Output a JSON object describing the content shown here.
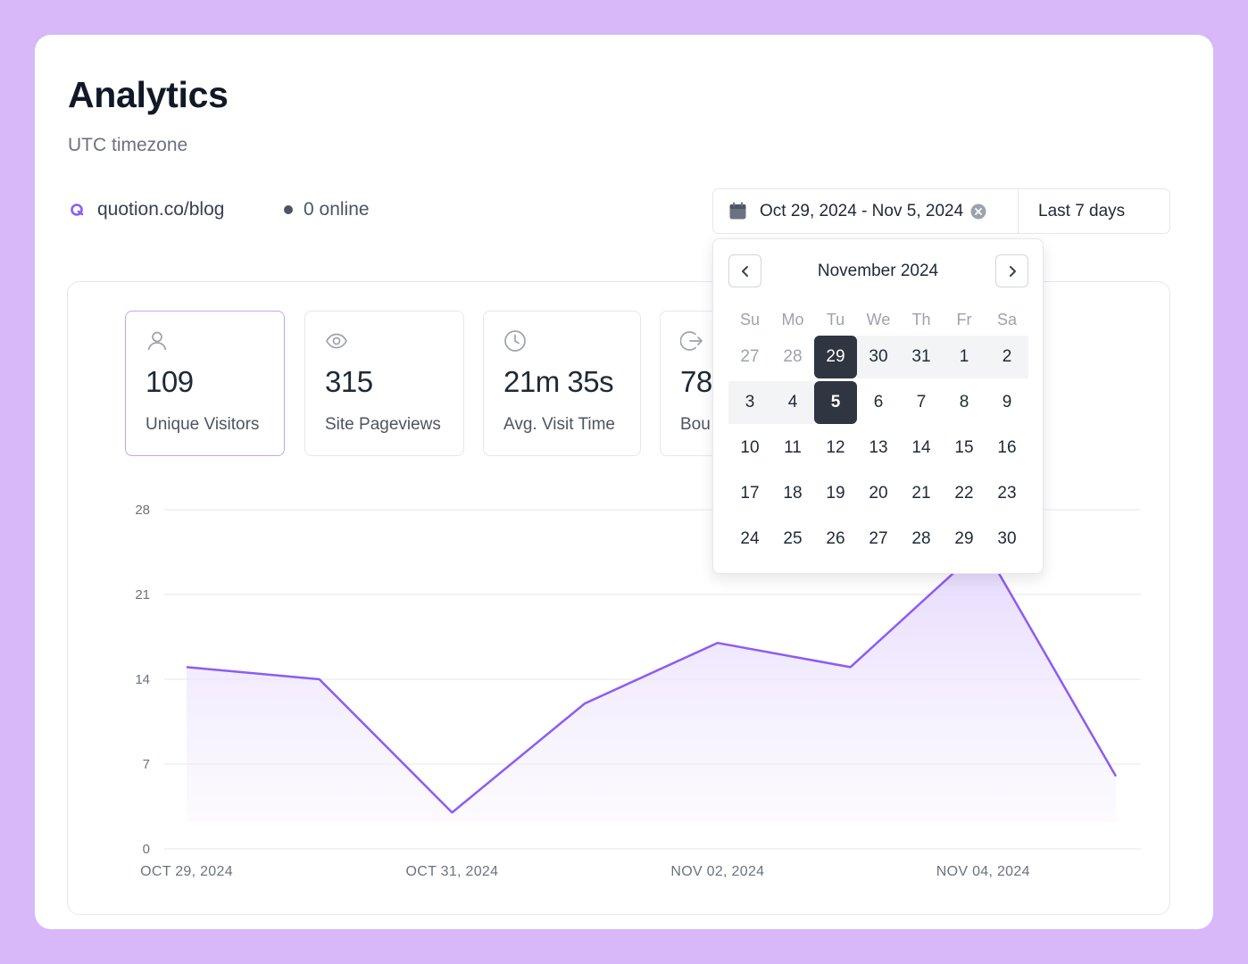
{
  "page": {
    "title": "Analytics",
    "subtitle": "UTC timezone"
  },
  "site": {
    "name": "quotion.co/blog",
    "icon": "quotion-logo-icon",
    "accent": "#8b5cf6"
  },
  "online": {
    "label": "0 online"
  },
  "date_picker": {
    "range": "Oct 29, 2024 - Nov 5, 2024",
    "preset": "Last 7 days"
  },
  "stats": [
    {
      "icon": "user-icon",
      "value": "109",
      "label": "Unique Visitors",
      "active": true
    },
    {
      "icon": "eye-icon",
      "value": "315",
      "label": "Site Pageviews",
      "active": false
    },
    {
      "icon": "clock-icon",
      "value": "21m 35s",
      "label": "Avg. Visit Time",
      "active": false
    },
    {
      "icon": "exit-icon",
      "value": "78",
      "label": "Bou",
      "active": false
    }
  ],
  "calendar": {
    "month_label": "November 2024",
    "weekdays": [
      "Su",
      "Mo",
      "Tu",
      "We",
      "Th",
      "Fr",
      "Sa"
    ],
    "days": [
      {
        "d": "27",
        "muted": true,
        "state": ""
      },
      {
        "d": "28",
        "muted": true,
        "state": ""
      },
      {
        "d": "29",
        "muted": false,
        "state": "range-start"
      },
      {
        "d": "30",
        "muted": false,
        "state": "range"
      },
      {
        "d": "31",
        "muted": false,
        "state": "range"
      },
      {
        "d": "1",
        "muted": false,
        "state": "range"
      },
      {
        "d": "2",
        "muted": false,
        "state": "range"
      },
      {
        "d": "3",
        "muted": false,
        "state": "range"
      },
      {
        "d": "4",
        "muted": false,
        "state": "range"
      },
      {
        "d": "5",
        "muted": false,
        "state": "range-end"
      },
      {
        "d": "6",
        "muted": false,
        "state": ""
      },
      {
        "d": "7",
        "muted": false,
        "state": ""
      },
      {
        "d": "8",
        "muted": false,
        "state": ""
      },
      {
        "d": "9",
        "muted": false,
        "state": ""
      },
      {
        "d": "10",
        "muted": false,
        "state": ""
      },
      {
        "d": "11",
        "muted": false,
        "state": ""
      },
      {
        "d": "12",
        "muted": false,
        "state": ""
      },
      {
        "d": "13",
        "muted": false,
        "state": ""
      },
      {
        "d": "14",
        "muted": false,
        "state": ""
      },
      {
        "d": "15",
        "muted": false,
        "state": ""
      },
      {
        "d": "16",
        "muted": false,
        "state": ""
      },
      {
        "d": "17",
        "muted": false,
        "state": ""
      },
      {
        "d": "18",
        "muted": false,
        "state": ""
      },
      {
        "d": "19",
        "muted": false,
        "state": ""
      },
      {
        "d": "20",
        "muted": false,
        "state": ""
      },
      {
        "d": "21",
        "muted": false,
        "state": ""
      },
      {
        "d": "22",
        "muted": false,
        "state": ""
      },
      {
        "d": "23",
        "muted": false,
        "state": ""
      },
      {
        "d": "24",
        "muted": false,
        "state": ""
      },
      {
        "d": "25",
        "muted": false,
        "state": ""
      },
      {
        "d": "26",
        "muted": false,
        "state": ""
      },
      {
        "d": "27",
        "muted": false,
        "state": ""
      },
      {
        "d": "28",
        "muted": false,
        "state": ""
      },
      {
        "d": "29",
        "muted": false,
        "state": ""
      },
      {
        "d": "30",
        "muted": false,
        "state": ""
      }
    ]
  },
  "chart_data": {
    "type": "area",
    "x": [
      "2024-10-29",
      "2024-10-30",
      "2024-10-31",
      "2024-11-01",
      "2024-11-02",
      "2024-11-03",
      "2024-11-04",
      "2024-11-05"
    ],
    "y": [
      15,
      14,
      3,
      12,
      17,
      15,
      25,
      6
    ],
    "x_tick_labels": [
      "OCT 29, 2024",
      "OCT 31, 2024",
      "NOV 02, 2024",
      "NOV 04, 2024"
    ],
    "y_ticks": [
      0,
      7,
      14,
      21,
      28
    ],
    "ylim": [
      0,
      28
    ],
    "grid": true,
    "line_color": "#8b5cf6",
    "fill_color": "#ede4fd"
  }
}
